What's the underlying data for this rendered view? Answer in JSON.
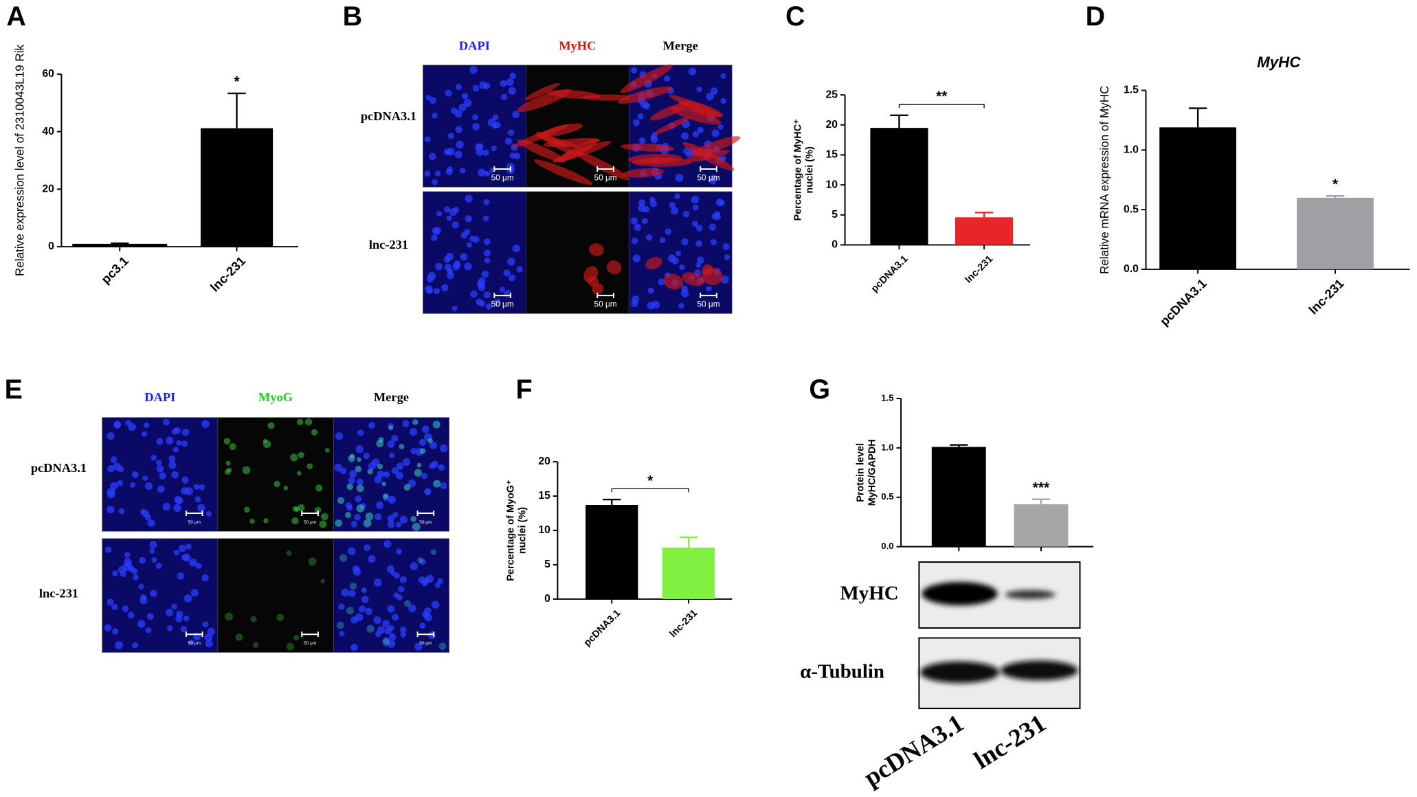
{
  "chart_data": [
    {
      "panel_label": "A",
      "type": "bar",
      "ylabel": "Relative expression level of 2310043L19 Rik",
      "categories": [
        "pc3.1",
        "lnc-231"
      ],
      "values": [
        1.0,
        41.2
      ],
      "errors": [
        0.2,
        12.1
      ],
      "colors": [
        "#000000",
        "#000000"
      ],
      "ylim": [
        0,
        60
      ],
      "yticks": [
        0,
        20,
        40,
        60
      ],
      "significance": "*",
      "bracket": false
    },
    {
      "panel_label": "C",
      "type": "bar",
      "ylabel": [
        "Percentage of MyHC⁺",
        "nuclei (%)"
      ],
      "categories": [
        "pcDNA3.1",
        "lnc-231"
      ],
      "values": [
        19.5,
        4.6
      ],
      "errors": [
        2.1,
        0.8
      ],
      "colors": [
        "#000000",
        "#e8262a"
      ],
      "ylim": [
        0,
        25
      ],
      "yticks": [
        0,
        5,
        10,
        15,
        20,
        25
      ],
      "significance": "**",
      "bracket": true
    },
    {
      "panel_label": "D",
      "type": "bar",
      "title": "MyHC",
      "ylabel": "Relative mRNA expression of MyHC",
      "categories": [
        "pcDNA3.1",
        "lnc-231"
      ],
      "values": [
        1.19,
        0.6
      ],
      "errors": [
        0.16,
        0.015
      ],
      "colors": [
        "#000000",
        "#a0a0a4"
      ],
      "ylim": [
        0,
        1.5
      ],
      "yticks": [
        {
          "value": 0,
          "label": "0.0"
        },
        {
          "value": 0.5,
          "label": "0.5"
        },
        {
          "value": 1,
          "label": "1.0"
        },
        {
          "value": 1.5,
          "label": "1.5"
        }
      ],
      "significance": "*",
      "bracket": false
    },
    {
      "panel_label": "F",
      "type": "bar",
      "ylabel": [
        "Percentage of MyoG⁺",
        "nuclei (%)"
      ],
      "categories": [
        "pcDNA3.1",
        "lnc-231"
      ],
      "values": [
        13.7,
        7.5
      ],
      "errors": [
        0.8,
        1.5
      ],
      "colors": [
        "#000000",
        "#82f040"
      ],
      "ylim": [
        0,
        20
      ],
      "yticks": [
        0,
        5,
        10,
        15,
        20
      ],
      "significance": "*",
      "bracket": true
    },
    {
      "panel_label": "G",
      "type": "bar",
      "ylabel": [
        "Protein level",
        "MyHC/GAPDH"
      ],
      "categories": [
        "pcDNA3.1",
        "lnc-231"
      ],
      "values": [
        1.01,
        0.43
      ],
      "errors": [
        0.02,
        0.05
      ],
      "colors": [
        "#000000",
        "#a6a6a8"
      ],
      "ylim": [
        0,
        1.5
      ],
      "yticks": [
        {
          "value": 0,
          "label": "0.0"
        },
        {
          "value": 0.5,
          "label": "0.5"
        },
        {
          "value": 1,
          "label": "1.0"
        },
        {
          "value": 1.5,
          "label": "1.5"
        }
      ],
      "significance": "***",
      "bracket": false
    }
  ],
  "images": [
    {
      "panel_label": "B",
      "columns": [
        "DAPI",
        "MyHC",
        "Merge"
      ],
      "rows": [
        "pcDNA3.1",
        "lnc-231"
      ],
      "scale_bar": "50 μm"
    },
    {
      "panel_label": "E",
      "columns": [
        "DAPI",
        "MyoG",
        "Merge"
      ],
      "rows": [
        "pcDNA3.1",
        "lnc-231"
      ],
      "scale_bar": "50 μm"
    }
  ],
  "blot": {
    "rows": [
      "MyHC",
      "α-Tubulin"
    ]
  }
}
